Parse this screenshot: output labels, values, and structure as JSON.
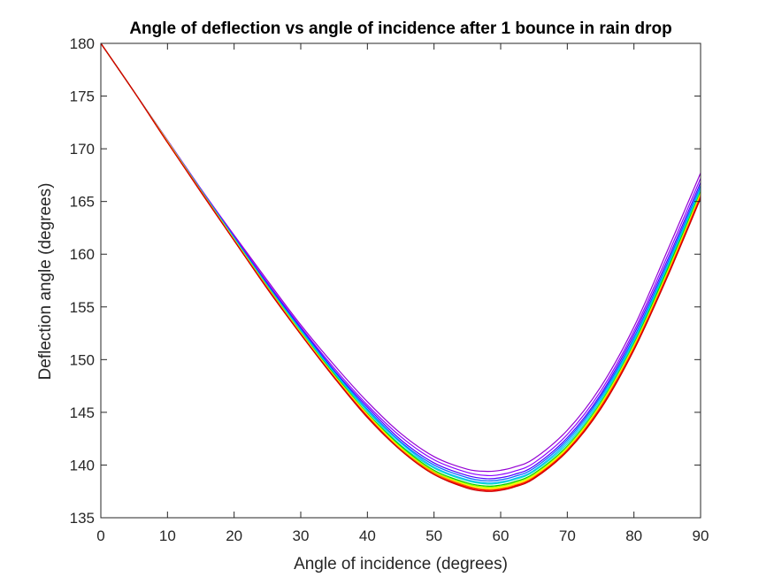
{
  "chart_data": {
    "type": "line",
    "title": "Angle of deflection vs angle of incidence after 1 bounce in rain drop",
    "xlabel": "Angle of incidence (degrees)",
    "ylabel": "Deflection angle (degrees)",
    "xlim": [
      0,
      90
    ],
    "ylim": [
      135,
      180
    ],
    "xticks": [
      0,
      10,
      20,
      30,
      40,
      50,
      60,
      70,
      80,
      90
    ],
    "yticks": [
      135,
      140,
      145,
      150,
      155,
      160,
      165,
      170,
      175,
      180
    ],
    "grid": false,
    "box": true,
    "x": [
      0,
      5,
      10,
      15,
      20,
      25,
      30,
      35,
      40,
      45,
      50,
      55,
      58,
      60,
      62,
      65,
      70,
      75,
      80,
      85,
      90
    ],
    "series": [
      {
        "color": "#9400D3",
        "values": [
          180.0,
          175.4,
          170.8,
          166.2,
          161.8,
          157.5,
          153.3,
          149.5,
          146.0,
          143.0,
          140.8,
          139.6,
          139.4,
          139.5,
          139.8,
          140.6,
          143.3,
          147.4,
          153.1,
          160.3,
          167.7
        ]
      },
      {
        "color": "#8B00FF",
        "values": [
          180.0,
          175.4,
          170.8,
          166.2,
          161.7,
          157.3,
          153.1,
          149.2,
          145.7,
          142.7,
          140.5,
          139.3,
          139.0,
          139.1,
          139.4,
          140.2,
          142.9,
          147.0,
          152.7,
          159.8,
          167.2
        ]
      },
      {
        "color": "#4B00FF",
        "values": [
          180.0,
          175.4,
          170.7,
          166.1,
          161.6,
          157.2,
          153.0,
          149.0,
          145.5,
          142.4,
          140.2,
          139.0,
          138.7,
          138.8,
          139.1,
          139.9,
          142.6,
          146.7,
          152.4,
          159.4,
          166.8
        ]
      },
      {
        "color": "#0064FF",
        "values": [
          180.0,
          175.4,
          170.7,
          166.1,
          161.6,
          157.1,
          152.9,
          148.9,
          145.3,
          142.2,
          140.0,
          138.8,
          138.5,
          138.6,
          138.9,
          139.7,
          142.4,
          146.5,
          152.1,
          159.1,
          166.5
        ]
      },
      {
        "color": "#00B4FF",
        "values": [
          180.0,
          175.4,
          170.7,
          166.1,
          161.5,
          157.0,
          152.8,
          148.8,
          145.2,
          142.1,
          139.8,
          138.6,
          138.3,
          138.4,
          138.7,
          139.5,
          142.2,
          146.3,
          151.9,
          158.9,
          166.3
        ]
      },
      {
        "color": "#00E0C0",
        "values": [
          180.0,
          175.4,
          170.7,
          166.1,
          161.5,
          157.0,
          152.7,
          148.7,
          145.1,
          141.9,
          139.7,
          138.5,
          138.2,
          138.3,
          138.6,
          139.4,
          142.0,
          146.1,
          151.7,
          158.7,
          166.1
        ]
      },
      {
        "color": "#00C800",
        "values": [
          180.0,
          175.4,
          170.7,
          166.0,
          161.4,
          156.9,
          152.6,
          148.6,
          144.9,
          141.8,
          139.5,
          138.3,
          138.0,
          138.1,
          138.4,
          139.2,
          141.8,
          145.9,
          151.5,
          158.5,
          165.9
        ]
      },
      {
        "color": "#96FF00",
        "values": [
          180.0,
          175.4,
          170.7,
          166.0,
          161.4,
          156.9,
          152.6,
          148.5,
          144.8,
          141.7,
          139.4,
          138.2,
          137.9,
          138.0,
          138.3,
          139.1,
          141.7,
          145.8,
          151.4,
          158.3,
          165.8
        ]
      },
      {
        "color": "#FFFF00",
        "values": [
          180.0,
          175.4,
          170.7,
          166.0,
          161.4,
          156.8,
          152.5,
          148.5,
          144.8,
          141.6,
          139.3,
          138.1,
          137.8,
          137.9,
          138.2,
          139.0,
          141.6,
          145.7,
          151.3,
          158.2,
          165.7
        ]
      },
      {
        "color": "#FFB400",
        "values": [
          180.0,
          175.4,
          170.6,
          166.0,
          161.3,
          156.8,
          152.5,
          148.4,
          144.7,
          141.5,
          139.3,
          138.0,
          137.7,
          137.8,
          138.1,
          138.9,
          141.5,
          145.6,
          151.2,
          158.1,
          165.6
        ]
      },
      {
        "color": "#FF6400",
        "values": [
          180.0,
          175.4,
          170.6,
          166.0,
          161.3,
          156.8,
          152.4,
          148.4,
          144.6,
          141.5,
          139.2,
          138.0,
          137.6,
          137.7,
          138.0,
          138.8,
          141.4,
          145.5,
          151.1,
          158.0,
          165.5
        ]
      },
      {
        "color": "#FF0000",
        "values": [
          180.0,
          175.4,
          170.6,
          165.9,
          161.3,
          156.7,
          152.4,
          148.3,
          144.6,
          141.4,
          139.1,
          137.9,
          137.6,
          137.7,
          138.0,
          138.8,
          141.4,
          145.4,
          151.0,
          157.9,
          165.4
        ]
      },
      {
        "color": "#CC0000",
        "values": [
          180.0,
          175.4,
          170.6,
          165.9,
          161.3,
          156.7,
          152.4,
          148.3,
          144.5,
          141.4,
          139.1,
          137.8,
          137.5,
          137.6,
          137.9,
          138.7,
          141.3,
          145.3,
          150.9,
          157.8,
          165.3
        ]
      }
    ]
  }
}
